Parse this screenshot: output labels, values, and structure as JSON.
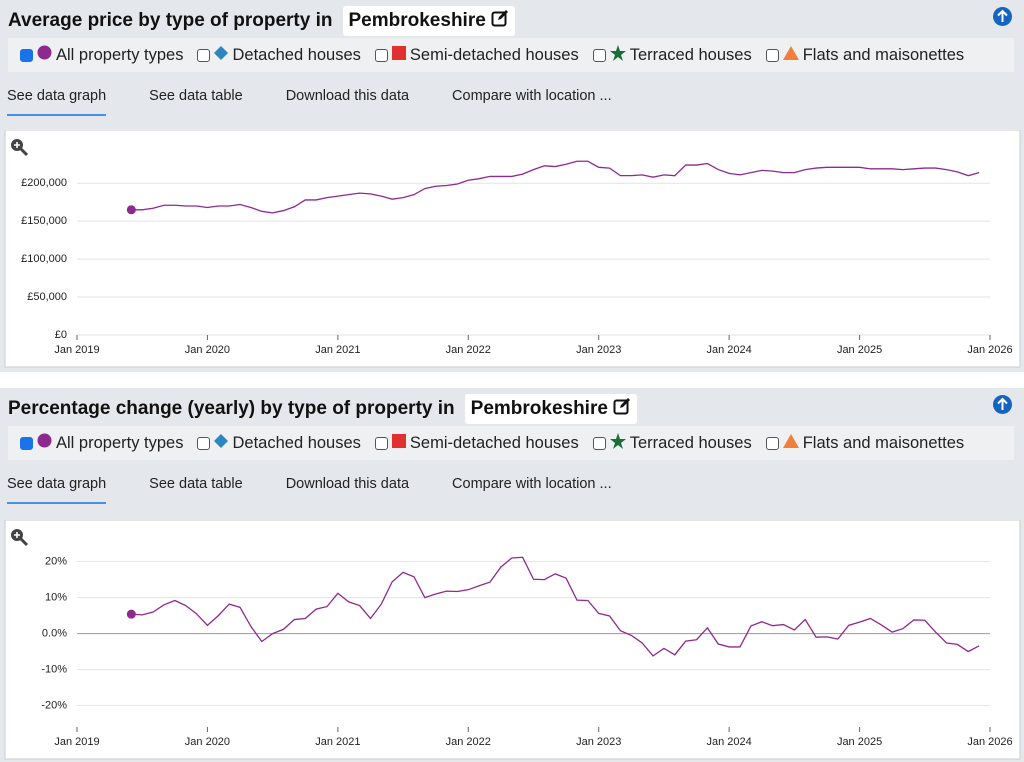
{
  "panels": [
    {
      "title": "Average price by type of property in",
      "location": "Pembrokeshire",
      "options": [
        "Detached houses",
        "Semi-detached houses",
        "Terraced houses",
        "Flats and maisonettes"
      ],
      "tabs": [
        "See data graph",
        "See data table",
        "Download this data",
        "Compare with location ..."
      ]
    },
    {
      "title": "Percentage change (yearly) by type of property in",
      "location": "Pembrokeshire",
      "options": [
        "Detached houses",
        "Semi-detached houses",
        "Terraced houses",
        "Flats and maisonettes"
      ],
      "tabs": [
        "See data graph",
        "See data table",
        "Download this data",
        "Compare with location ..."
      ]
    }
  ],
  "chart_data": [
    {
      "type": "line",
      "x": [
        "2019-06",
        "2019-07",
        "2019-08",
        "2019-09",
        "2019-10",
        "2019-11",
        "2019-12",
        "2020-01",
        "2020-02",
        "2020-03",
        "2020-04",
        "2020-05",
        "2020-06",
        "2020-07",
        "2020-08",
        "2020-09",
        "2020-10",
        "2020-11",
        "2020-12",
        "2021-01",
        "2021-02",
        "2021-03",
        "2021-04",
        "2021-05",
        "2021-06",
        "2021-07",
        "2021-08",
        "2021-09",
        "2021-10",
        "2021-11",
        "2021-12",
        "2022-01",
        "2022-02",
        "2022-03",
        "2022-04",
        "2022-05",
        "2022-06",
        "2022-07",
        "2022-08",
        "2022-09",
        "2022-10",
        "2022-11",
        "2022-12",
        "2023-01",
        "2023-02",
        "2023-03",
        "2023-04",
        "2023-05",
        "2023-06",
        "2023-07",
        "2023-08",
        "2023-09",
        "2023-10",
        "2023-11",
        "2023-12",
        "2024-01",
        "2024-02",
        "2024-03",
        "2024-04",
        "2024-05",
        "2024-06",
        "2024-07",
        "2024-08",
        "2024-09",
        "2024-10",
        "2024-11",
        "2024-12",
        "2025-01",
        "2025-02",
        "2025-03",
        "2025-04",
        "2025-05",
        "2025-06",
        "2025-07",
        "2025-08",
        "2025-09",
        "2025-10",
        "2025-11",
        "2025-12"
      ],
      "series": [
        {
          "name": "All property types",
          "color": "#8e2a8e",
          "values": [
            165000,
            165000,
            167000,
            171000,
            171000,
            170000,
            170000,
            168000,
            170000,
            170000,
            172000,
            168000,
            163000,
            161000,
            164000,
            169000,
            178000,
            178000,
            181000,
            183000,
            185000,
            187000,
            186000,
            183000,
            179000,
            181000,
            185000,
            193000,
            196000,
            197000,
            199000,
            204000,
            206000,
            209000,
            209000,
            209000,
            212000,
            218000,
            223000,
            222000,
            225000,
            229000,
            229000,
            221000,
            220000,
            210000,
            210000,
            211000,
            208000,
            211000,
            210000,
            224000,
            224000,
            226000,
            218000,
            213000,
            211000,
            214000,
            217000,
            216000,
            214000,
            214000,
            218000,
            220000,
            221000,
            221000,
            221000,
            221000,
            219000,
            219000,
            219000,
            218000,
            219000,
            220000,
            220000,
            218000,
            215000,
            210000,
            214000
          ]
        }
      ],
      "xlim": [
        "2019-01",
        "2026-01"
      ],
      "xticks": [
        {
          "value": "2019-01",
          "label": "Jan 2019"
        },
        {
          "value": "2020-01",
          "label": "Jan 2020"
        },
        {
          "value": "2021-01",
          "label": "Jan 2021"
        },
        {
          "value": "2022-01",
          "label": "Jan 2022"
        },
        {
          "value": "2023-01",
          "label": "Jan 2023"
        },
        {
          "value": "2024-01",
          "label": "Jan 2024"
        },
        {
          "value": "2025-01",
          "label": "Jan 2025"
        },
        {
          "value": "2026-01",
          "label": "Jan 2026"
        }
      ],
      "ylim": [
        0,
        257000
      ],
      "yticks": [
        {
          "value": 0,
          "label": "£0"
        },
        {
          "value": 50000,
          "label": "£50,000"
        },
        {
          "value": 100000,
          "label": "£100,000"
        },
        {
          "value": 150000,
          "label": "£150,000"
        },
        {
          "value": 200000,
          "label": "£200,000"
        }
      ],
      "grid": true
    },
    {
      "type": "line",
      "x": [
        "2019-06",
        "2019-07",
        "2019-08",
        "2019-09",
        "2019-10",
        "2019-11",
        "2019-12",
        "2020-01",
        "2020-02",
        "2020-03",
        "2020-04",
        "2020-05",
        "2020-06",
        "2020-07",
        "2020-08",
        "2020-09",
        "2020-10",
        "2020-11",
        "2020-12",
        "2021-01",
        "2021-02",
        "2021-03",
        "2021-04",
        "2021-05",
        "2021-06",
        "2021-07",
        "2021-08",
        "2021-09",
        "2021-10",
        "2021-11",
        "2021-12",
        "2022-01",
        "2022-02",
        "2022-03",
        "2022-04",
        "2022-05",
        "2022-06",
        "2022-07",
        "2022-08",
        "2022-09",
        "2022-10",
        "2022-11",
        "2022-12",
        "2023-01",
        "2023-02",
        "2023-03",
        "2023-04",
        "2023-05",
        "2023-06",
        "2023-07",
        "2023-08",
        "2023-09",
        "2023-10",
        "2023-11",
        "2023-12",
        "2024-01",
        "2024-02",
        "2024-03",
        "2024-04",
        "2024-05",
        "2024-06",
        "2024-07",
        "2024-08",
        "2024-09",
        "2024-10",
        "2024-11",
        "2024-12",
        "2025-01",
        "2025-02",
        "2025-03",
        "2025-04",
        "2025-05",
        "2025-06",
        "2025-07",
        "2025-08",
        "2025-09",
        "2025-10",
        "2025-11",
        "2025-12"
      ],
      "series": [
        {
          "name": "All property types",
          "color": "#8e2a8e",
          "values": [
            5.4,
            5.2,
            6,
            8,
            9.2,
            7.8,
            5.5,
            2.3,
            5,
            8.2,
            7.3,
            2,
            -2.2,
            0,
            1.2,
            3.9,
            4.2,
            6.8,
            7.5,
            11.2,
            8.8,
            7.8,
            4.2,
            8.2,
            14.4,
            17,
            15.8,
            10,
            11,
            11.8,
            11.7,
            12.2,
            13.3,
            14.3,
            18.5,
            21,
            21.2,
            15.1,
            15,
            16.6,
            15.4,
            9.3,
            9.2,
            5.6,
            4.9,
            0.8,
            -0.5,
            -2.6,
            -6.2,
            -4.1,
            -5.9,
            -2.1,
            -1.7,
            1.6,
            -2.9,
            -3.7,
            -3.7,
            2.1,
            3.3,
            2.2,
            2.5,
            1,
            3.9,
            -1,
            -0.9,
            -1.5,
            2.3,
            3.2,
            4.2,
            2.4,
            0.4,
            1.4,
            3.8,
            3.7,
            0.4,
            -2.6,
            -3,
            -5,
            -3.4
          ]
        }
      ],
      "xlim": [
        "2019-01",
        "2026-01"
      ],
      "xticks": [
        {
          "value": "2019-01",
          "label": "Jan 2019"
        },
        {
          "value": "2020-01",
          "label": "Jan 2020"
        },
        {
          "value": "2021-01",
          "label": "Jan 2021"
        },
        {
          "value": "2022-01",
          "label": "Jan 2022"
        },
        {
          "value": "2023-01",
          "label": "Jan 2023"
        },
        {
          "value": "2024-01",
          "label": "Jan 2024"
        },
        {
          "value": "2025-01",
          "label": "Jan 2025"
        },
        {
          "value": "2026-01",
          "label": "Jan 2026"
        }
      ],
      "ylim": [
        -24,
        26
      ],
      "yticks": [
        {
          "value": -20,
          "label": "-20%"
        },
        {
          "value": -10,
          "label": "-10%"
        },
        {
          "value": 0,
          "label": "0.0%"
        },
        {
          "value": 10,
          "label": "10%"
        },
        {
          "value": 20,
          "label": "20%"
        }
      ],
      "grid": true
    }
  ]
}
